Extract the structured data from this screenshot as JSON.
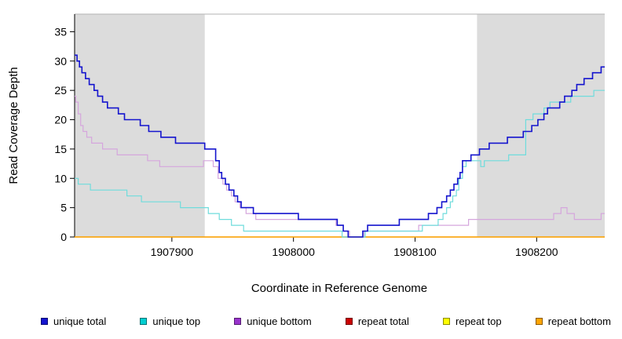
{
  "chart_data": {
    "type": "line",
    "step": true,
    "title": "",
    "xlabel": "Coordinate in Reference Genome",
    "ylabel": "Read Coverage Depth",
    "xlim": [
      1907820,
      1908256
    ],
    "ylim": [
      0,
      38
    ],
    "xticks": [
      1907900,
      1908000,
      1908100,
      1908200
    ],
    "yticks": [
      0,
      5,
      10,
      15,
      20,
      25,
      30,
      35
    ],
    "grid": false,
    "legend_position": "bottom",
    "shade_color": "#dcdcdc",
    "shaded_regions": [
      {
        "from": 1907820,
        "to": 1907927
      },
      {
        "from": 1908151,
        "to": 1908256
      }
    ],
    "series": [
      {
        "name": "unique total",
        "color": "#1414ce",
        "legend_color": "#1414ce",
        "width": 1.6,
        "points": [
          [
            1907820,
            31
          ],
          [
            1907822,
            30
          ],
          [
            1907824,
            29
          ],
          [
            1907826,
            28
          ],
          [
            1907829,
            27
          ],
          [
            1907832,
            26
          ],
          [
            1907836,
            25
          ],
          [
            1907839,
            24
          ],
          [
            1907843,
            23
          ],
          [
            1907847,
            22
          ],
          [
            1907856,
            21
          ],
          [
            1907861,
            20
          ],
          [
            1907874,
            19
          ],
          [
            1907881,
            18
          ],
          [
            1907891,
            17
          ],
          [
            1907903,
            16
          ],
          [
            1907927,
            15
          ],
          [
            1907936,
            13
          ],
          [
            1907939,
            11
          ],
          [
            1907941,
            10
          ],
          [
            1907944,
            9
          ],
          [
            1907947,
            8
          ],
          [
            1907951,
            7
          ],
          [
            1907954,
            6
          ],
          [
            1907957,
            5
          ],
          [
            1907967,
            4
          ],
          [
            1908004,
            3
          ],
          [
            1908036,
            2
          ],
          [
            1908041,
            1
          ],
          [
            1908045,
            0
          ],
          [
            1908057,
            1
          ],
          [
            1908061,
            2
          ],
          [
            1908087,
            3
          ],
          [
            1908111,
            4
          ],
          [
            1908118,
            5
          ],
          [
            1908122,
            6
          ],
          [
            1908126,
            7
          ],
          [
            1908129,
            8
          ],
          [
            1908132,
            9
          ],
          [
            1908135,
            10
          ],
          [
            1908137,
            11
          ],
          [
            1908139,
            13
          ],
          [
            1908146,
            14
          ],
          [
            1908153,
            15
          ],
          [
            1908161,
            16
          ],
          [
            1908176,
            17
          ],
          [
            1908189,
            18
          ],
          [
            1908196,
            19
          ],
          [
            1908201,
            20
          ],
          [
            1908206,
            21
          ],
          [
            1908209,
            22
          ],
          [
            1908219,
            23
          ],
          [
            1908223,
            24
          ],
          [
            1908229,
            25
          ],
          [
            1908233,
            26
          ],
          [
            1908239,
            27
          ],
          [
            1908246,
            28
          ],
          [
            1908253,
            29
          ]
        ]
      },
      {
        "name": "unique top",
        "color": "#6fdcdc",
        "legend_color": "#00ced1",
        "width": 1.2,
        "points": [
          [
            1907820,
            10
          ],
          [
            1907823,
            9
          ],
          [
            1907833,
            8
          ],
          [
            1907863,
            7
          ],
          [
            1907875,
            6
          ],
          [
            1907907,
            5
          ],
          [
            1907930,
            4
          ],
          [
            1907939,
            3
          ],
          [
            1907949,
            2
          ],
          [
            1907959,
            1
          ],
          [
            1908040,
            0
          ],
          [
            1908059,
            1
          ],
          [
            1908106,
            2
          ],
          [
            1908119,
            3
          ],
          [
            1908123,
            4
          ],
          [
            1908126,
            5
          ],
          [
            1908129,
            6
          ],
          [
            1908131,
            7
          ],
          [
            1908134,
            8
          ],
          [
            1908136,
            10
          ],
          [
            1908139,
            12
          ],
          [
            1908142,
            13
          ],
          [
            1908154,
            12
          ],
          [
            1908157,
            13
          ],
          [
            1908177,
            14
          ],
          [
            1908191,
            20
          ],
          [
            1908197,
            21
          ],
          [
            1908206,
            22
          ],
          [
            1908211,
            23
          ],
          [
            1908228,
            24
          ],
          [
            1908247,
            25
          ]
        ]
      },
      {
        "name": "unique bottom",
        "color": "#d5a6dd",
        "legend_color": "#9933cc",
        "width": 1.2,
        "points": [
          [
            1907820,
            24
          ],
          [
            1907821,
            23
          ],
          [
            1907823,
            21
          ],
          [
            1907825,
            19
          ],
          [
            1907827,
            18
          ],
          [
            1907830,
            17
          ],
          [
            1907834,
            16
          ],
          [
            1907843,
            15
          ],
          [
            1907855,
            14
          ],
          [
            1907880,
            13
          ],
          [
            1907890,
            12
          ],
          [
            1907926,
            13
          ],
          [
            1907934,
            12
          ],
          [
            1907938,
            10
          ],
          [
            1907942,
            9
          ],
          [
            1907945,
            8
          ],
          [
            1907949,
            7
          ],
          [
            1907952,
            6
          ],
          [
            1907956,
            5
          ],
          [
            1907961,
            4
          ],
          [
            1907969,
            3
          ],
          [
            1908035,
            2
          ],
          [
            1908041,
            1
          ],
          [
            1908046,
            0
          ],
          [
            1908058,
            1
          ],
          [
            1908103,
            2
          ],
          [
            1908144,
            3
          ],
          [
            1908214,
            4
          ],
          [
            1908220,
            5
          ],
          [
            1908225,
            4
          ],
          [
            1908231,
            3
          ],
          [
            1908253,
            4
          ]
        ]
      },
      {
        "name": "repeat total",
        "color": "#cc0000",
        "legend_color": "#cc0000",
        "width": 1.2,
        "points": [
          [
            1907820,
            0
          ]
        ]
      },
      {
        "name": "repeat top",
        "color": "#ffff00",
        "legend_color": "#ffff00",
        "width": 1.2,
        "points": [
          [
            1907820,
            0
          ]
        ]
      },
      {
        "name": "repeat bottom",
        "color": "#ffa500",
        "legend_color": "#ffa500",
        "width": 1.2,
        "points": [
          [
            1907820,
            0
          ]
        ]
      }
    ]
  }
}
